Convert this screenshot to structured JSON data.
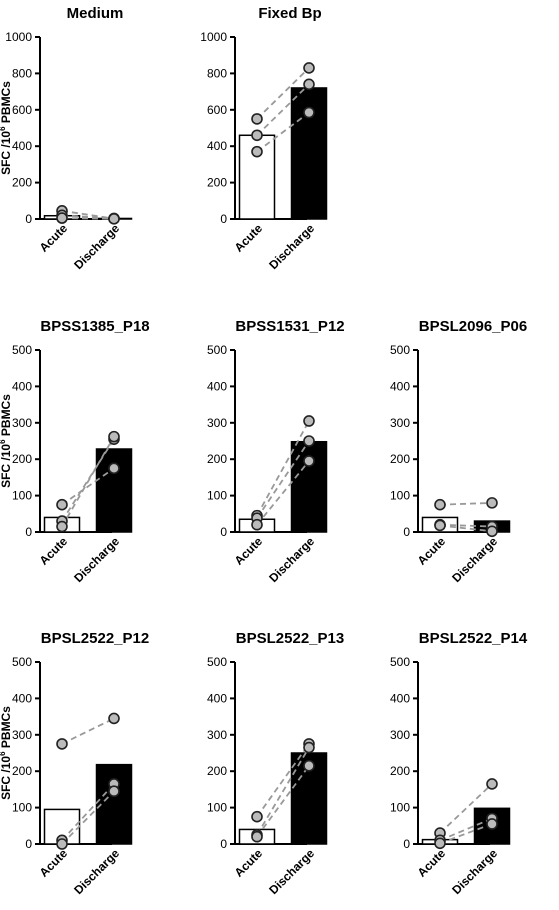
{
  "chart_data": [
    {
      "type": "bar",
      "title": "Medium",
      "ylabel": "SFC /10",
      "ylabel_sup": "6",
      "ylabel_tail": " PBMCs",
      "categories": [
        "Acute",
        "Discharge"
      ],
      "values": [
        18,
        3
      ],
      "ylim": [
        0,
        1000
      ],
      "yticks": [
        "0",
        "200",
        "400",
        "600",
        "800",
        "1000"
      ],
      "series": [
        {
          "values": [
            45,
            2
          ]
        },
        {
          "values": [
            20,
            3
          ]
        },
        {
          "values": [
            5,
            1
          ]
        }
      ]
    },
    {
      "type": "bar",
      "title": "Fixed Bp",
      "ylabel": "",
      "categories": [
        "Acute",
        "Discharge"
      ],
      "values": [
        460,
        720
      ],
      "ylim": [
        0,
        1000
      ],
      "yticks": [
        "0",
        "200",
        "400",
        "600",
        "800",
        "1000"
      ],
      "series": [
        {
          "values": [
            550,
            830
          ]
        },
        {
          "values": [
            460,
            740
          ]
        },
        {
          "values": [
            370,
            585
          ]
        }
      ]
    },
    {
      "type": "bar",
      "title": "BPSS1385_P18",
      "ylabel": "SFC /10",
      "ylabel_sup": "6",
      "ylabel_tail": " PBMCs",
      "categories": [
        "Acute",
        "Discharge"
      ],
      "values": [
        40,
        228
      ],
      "ylim": [
        0,
        500
      ],
      "yticks": [
        "0",
        "100",
        "200",
        "300",
        "400",
        "500"
      ],
      "series": [
        {
          "values": [
            75,
            175
          ]
        },
        {
          "values": [
            30,
            255
          ]
        },
        {
          "values": [
            15,
            262
          ]
        }
      ]
    },
    {
      "type": "bar",
      "title": "BPSS1531_P12",
      "ylabel": "",
      "categories": [
        "Acute",
        "Discharge"
      ],
      "values": [
        35,
        248
      ],
      "ylim": [
        0,
        500
      ],
      "yticks": [
        "0",
        "100",
        "200",
        "300",
        "400",
        "500"
      ],
      "series": [
        {
          "values": [
            45,
            305
          ]
        },
        {
          "values": [
            38,
            250
          ]
        },
        {
          "values": [
            20,
            195
          ]
        }
      ]
    },
    {
      "type": "bar",
      "title": "BPSL2096_P06",
      "ylabel": "",
      "categories": [
        "Acute",
        "Discharge"
      ],
      "values": [
        40,
        30
      ],
      "ylim": [
        0,
        500
      ],
      "yticks": [
        "0",
        "100",
        "200",
        "300",
        "400",
        "500"
      ],
      "series": [
        {
          "values": [
            75,
            80
          ]
        },
        {
          "values": [
            20,
            15
          ]
        },
        {
          "values": [
            18,
            2
          ]
        }
      ]
    },
    {
      "type": "bar",
      "title": "BPSL2522_P12",
      "ylabel": "SFC /10",
      "ylabel_sup": "6",
      "ylabel_tail": " PBMCs",
      "categories": [
        "Acute",
        "Discharge"
      ],
      "values": [
        95,
        218
      ],
      "ylim": [
        0,
        500
      ],
      "yticks": [
        "0",
        "100",
        "200",
        "300",
        "400",
        "500"
      ],
      "series": [
        {
          "values": [
            275,
            345
          ]
        },
        {
          "values": [
            10,
            165
          ]
        },
        {
          "values": [
            0,
            145
          ]
        }
      ]
    },
    {
      "type": "bar",
      "title": "BPSL2522_P13",
      "ylabel": "",
      "categories": [
        "Acute",
        "Discharge"
      ],
      "values": [
        40,
        250
      ],
      "ylim": [
        0,
        500
      ],
      "yticks": [
        "0",
        "100",
        "200",
        "300",
        "400",
        "500"
      ],
      "series": [
        {
          "values": [
            75,
            275
          ]
        },
        {
          "values": [
            25,
            265
          ]
        },
        {
          "values": [
            20,
            215
          ]
        }
      ]
    },
    {
      "type": "bar",
      "title": "BPSL2522_P14",
      "ylabel": "",
      "categories": [
        "Acute",
        "Discharge"
      ],
      "values": [
        12,
        98
      ],
      "ylim": [
        0,
        500
      ],
      "yticks": [
        "0",
        "100",
        "200",
        "300",
        "400",
        "500"
      ],
      "series": [
        {
          "values": [
            30,
            165
          ]
        },
        {
          "values": [
            10,
            70
          ]
        },
        {
          "values": [
            2,
            55
          ]
        }
      ]
    }
  ],
  "style": {
    "acute_bar_fill": "#ffffff",
    "discharge_bar_fill": "#000000",
    "line_color": "#999999",
    "marker_fill": "#bbbbbb",
    "marker_stroke": "#222222",
    "axis_color": "#000000"
  }
}
